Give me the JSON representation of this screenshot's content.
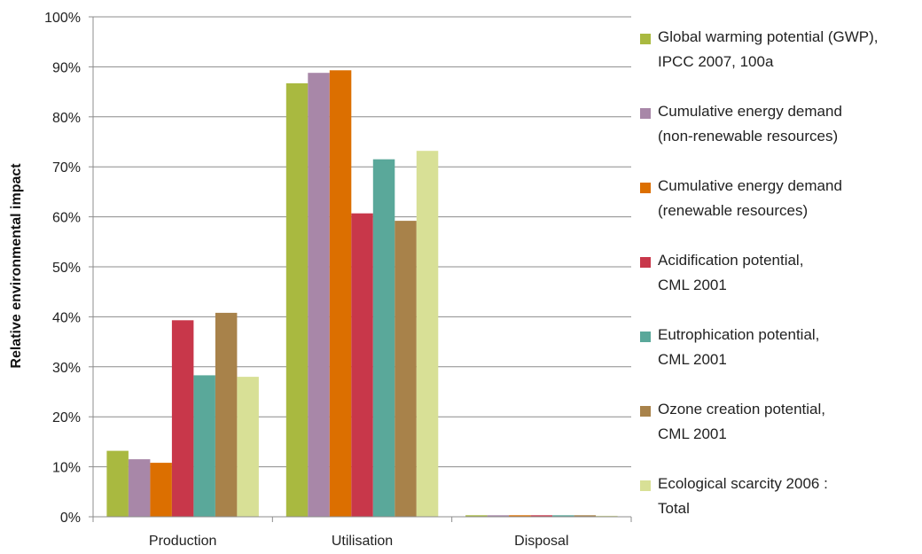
{
  "chart_data": {
    "type": "bar",
    "title": "",
    "xlabel": "",
    "ylabel": "Relative environmental impact",
    "ylim": [
      0,
      100
    ],
    "ytick_labels": [
      "0%",
      "10%",
      "20%",
      "30%",
      "40%",
      "50%",
      "60%",
      "70%",
      "80%",
      "90%",
      "100%"
    ],
    "categories": [
      "Production",
      "Utilisation",
      "Disposal"
    ],
    "legend_position": "right",
    "grid": true,
    "series": [
      {
        "name": "Global warming potential (GWP), IPCC 2007, 100a",
        "legend_lines": [
          "Global warming potential (GWP),",
          "IPCC 2007, 100a"
        ],
        "color": "#a9b940",
        "values": [
          13.2,
          86.7,
          0.3
        ]
      },
      {
        "name": "Cumulative energy demand (non-renewable resources)",
        "legend_lines": [
          "Cumulative energy demand",
          "(non-renewable resources)"
        ],
        "color": "#a887a8",
        "values": [
          11.5,
          88.8,
          0.3
        ]
      },
      {
        "name": "Cumulative energy demand (renewable resources)",
        "legend_lines": [
          "Cumulative energy demand",
          "(renewable resources)"
        ],
        "color": "#dc6f00",
        "values": [
          10.8,
          89.3,
          0.3
        ]
      },
      {
        "name": "Acidification potential, CML 2001",
        "legend_lines": [
          "Acidification potential,",
          "CML 2001"
        ],
        "color": "#c8374a",
        "values": [
          39.3,
          60.7,
          0.3
        ]
      },
      {
        "name": "Eutrophication potential, CML 2001",
        "legend_lines": [
          "Eutrophication potential,",
          "CML 2001"
        ],
        "color": "#5aa89a",
        "values": [
          28.3,
          71.5,
          0.3
        ]
      },
      {
        "name": "Ozone creation potential, CML 2001",
        "legend_lines": [
          "Ozone creation potential,",
          "CML 2001"
        ],
        "color": "#a8824a",
        "values": [
          40.8,
          59.2,
          0.3
        ]
      },
      {
        "name": "Ecological scarcity 2006 : Total",
        "legend_lines": [
          "Ecological scarcity 2006 :",
          "Total"
        ],
        "color": "#d8e096",
        "values": [
          28.0,
          73.2,
          0.2
        ]
      }
    ]
  }
}
